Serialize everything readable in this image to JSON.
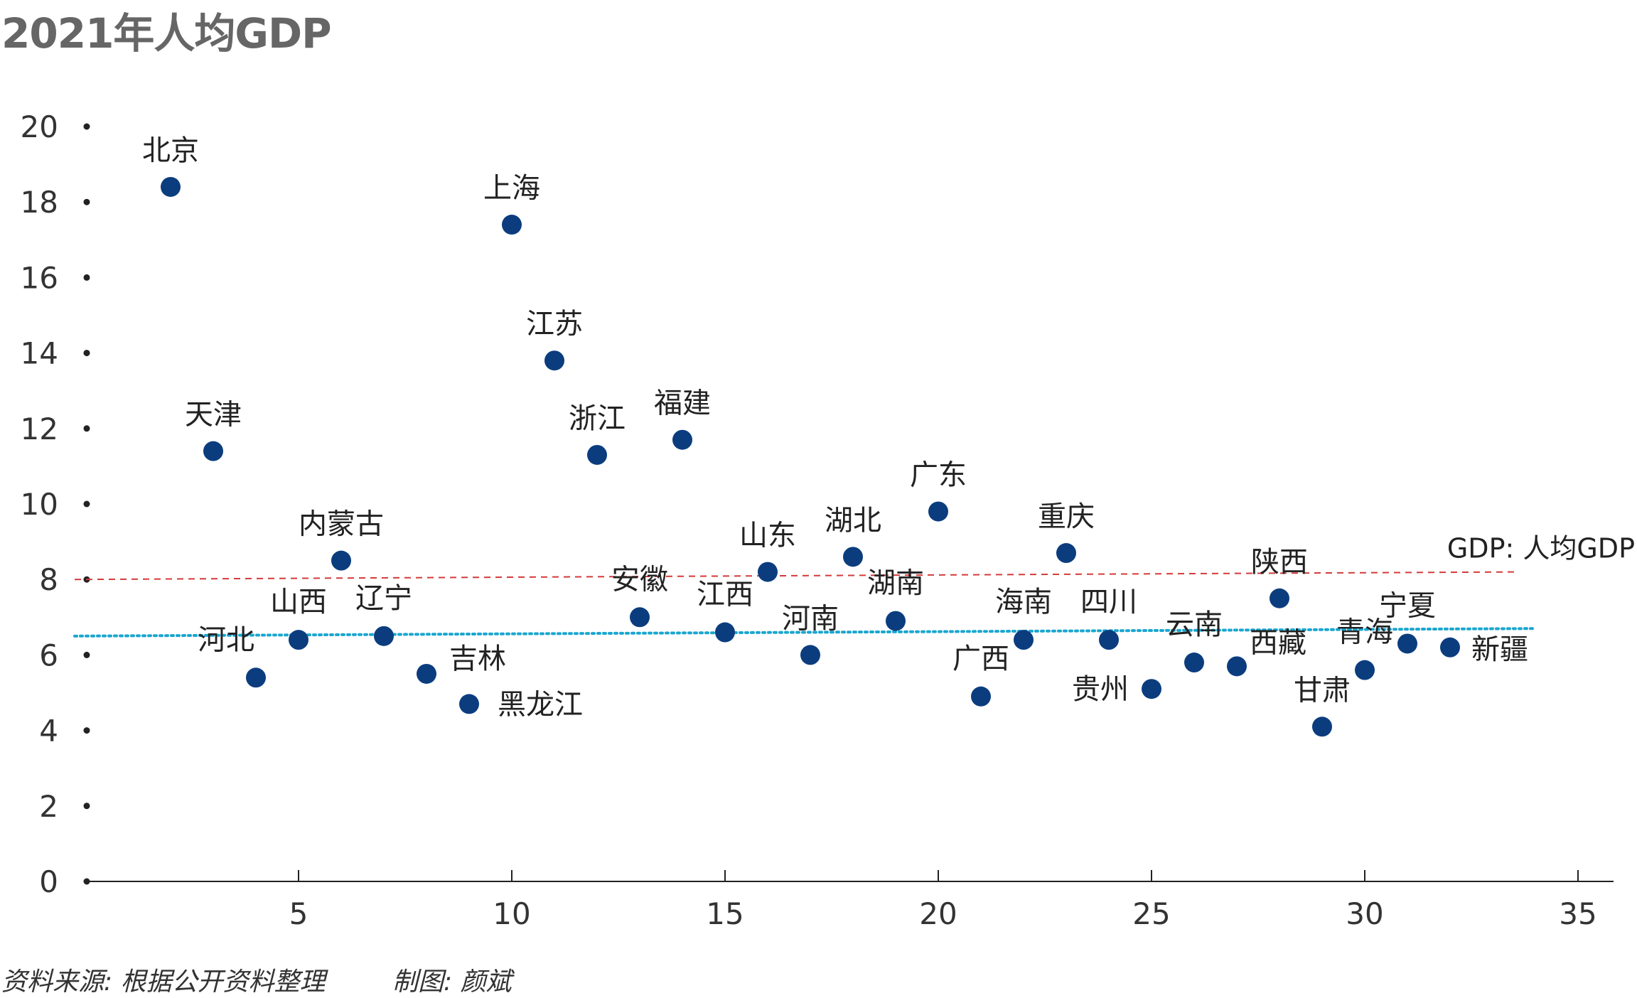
{
  "title": "2021年人均GDP",
  "source": "资料来源: 根据公开资料整理",
  "credit": "制图: 颜斌",
  "chart_data": {
    "type": "scatter",
    "xlim": [
      0,
      35
    ],
    "ylim": [
      0,
      20
    ],
    "x_ticks": [
      5,
      10,
      15,
      20,
      25,
      30,
      35
    ],
    "y_ticks": [
      0,
      2,
      4,
      6,
      8,
      10,
      12,
      14,
      16,
      18,
      20
    ],
    "grid": false,
    "point_color": "#0b3d7e",
    "points": [
      {
        "name": "北京",
        "x": 2,
        "y": 18.4
      },
      {
        "name": "天津",
        "x": 3,
        "y": 11.4
      },
      {
        "name": "河北",
        "x": 4,
        "y": 5.4
      },
      {
        "name": "山西",
        "x": 5,
        "y": 6.4
      },
      {
        "name": "内蒙古",
        "x": 6,
        "y": 8.5
      },
      {
        "name": "辽宁",
        "x": 7,
        "y": 6.5
      },
      {
        "name": "吉林",
        "x": 8,
        "y": 5.5
      },
      {
        "name": "黑龙江",
        "x": 9,
        "y": 4.7
      },
      {
        "name": "上海",
        "x": 10,
        "y": 17.4
      },
      {
        "name": "江苏",
        "x": 11,
        "y": 13.8
      },
      {
        "name": "浙江",
        "x": 12,
        "y": 11.3
      },
      {
        "name": "安徽",
        "x": 13,
        "y": 7.0
      },
      {
        "name": "福建",
        "x": 14,
        "y": 11.7
      },
      {
        "name": "江西",
        "x": 15,
        "y": 6.6
      },
      {
        "name": "山东",
        "x": 16,
        "y": 8.2
      },
      {
        "name": "河南",
        "x": 17,
        "y": 6.0
      },
      {
        "name": "湖北",
        "x": 18,
        "y": 8.6
      },
      {
        "name": "湖南",
        "x": 19,
        "y": 6.9
      },
      {
        "name": "广东",
        "x": 20,
        "y": 9.8
      },
      {
        "name": "广西",
        "x": 21,
        "y": 4.9
      },
      {
        "name": "海南",
        "x": 22,
        "y": 6.4
      },
      {
        "name": "重庆",
        "x": 23,
        "y": 8.7
      },
      {
        "name": "四川",
        "x": 24,
        "y": 6.4
      },
      {
        "name": "贵州",
        "x": 25,
        "y": 5.1
      },
      {
        "name": "云南",
        "x": 26,
        "y": 5.8
      },
      {
        "name": "西藏",
        "x": 27,
        "y": 5.7
      },
      {
        "name": "陕西",
        "x": 28,
        "y": 7.5
      },
      {
        "name": "甘肃",
        "x": 29,
        "y": 4.1
      },
      {
        "name": "青海",
        "x": 30,
        "y": 5.6
      },
      {
        "name": "宁夏",
        "x": 31,
        "y": 6.3
      },
      {
        "name": "新疆",
        "x": 32,
        "y": 6.2
      }
    ],
    "reference_lines": [
      {
        "name": "GDP: 人均GDP",
        "x": [
          0,
          33.6
        ],
        "y": [
          8.0,
          8.2
        ],
        "color": "#d43a3a",
        "style": "dashed"
      },
      {
        "name": "",
        "x": [
          0,
          34
        ],
        "y": [
          6.5,
          6.7
        ],
        "color": "#1aa6cf",
        "style": "dotted"
      }
    ]
  }
}
